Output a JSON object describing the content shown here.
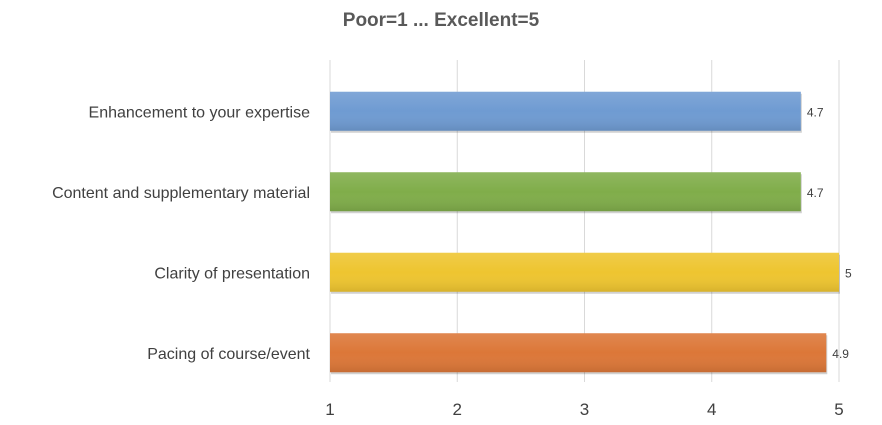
{
  "chart_data": {
    "type": "bar",
    "orientation": "horizontal",
    "title": "Poor=1 ... Excellent=5",
    "categories": [
      "Enhancement to your expertise",
      "Content and supplementary material",
      "Clarity of presentation",
      "Pacing of course/event"
    ],
    "values": [
      4.7,
      4.7,
      5,
      4.9
    ],
    "value_labels": [
      "4.7",
      "4.7",
      "5",
      "4.9"
    ],
    "colors": [
      "#6f9bd2",
      "#80ad4a",
      "#eec530",
      "#dc7738"
    ],
    "xlim": [
      1,
      5
    ],
    "xticks": [
      "1",
      "2",
      "3",
      "4",
      "5"
    ],
    "xlabel": "",
    "ylabel": "",
    "grid": "vertical"
  }
}
